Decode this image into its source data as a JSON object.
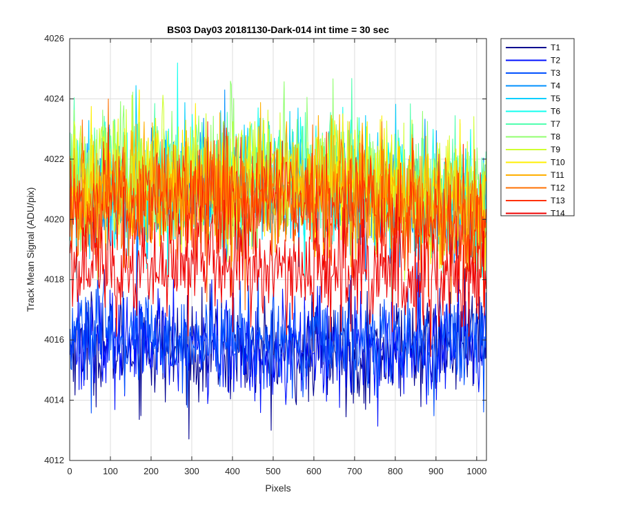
{
  "chart_data": {
    "type": "line",
    "title": "BS03 Day03 20181130-Dark-014 int time = 30 sec",
    "xlabel": "Pixels",
    "ylabel": "Track Mean Signal (ADU/pix)",
    "xlim": [
      0,
      1024
    ],
    "ylim": [
      4012,
      4026
    ],
    "xticks": [
      0,
      100,
      200,
      300,
      400,
      500,
      600,
      700,
      800,
      900,
      1000
    ],
    "yticks": [
      4012,
      4014,
      4016,
      4018,
      4020,
      4022,
      4024,
      4026
    ],
    "grid": true,
    "legend_position": "outside-right",
    "series": [
      {
        "name": "T1",
        "color": "#00008f",
        "level": [
          4016.0,
          4015.6,
          4015.9
        ],
        "noise": 0.85
      },
      {
        "name": "T2",
        "color": "#0010ff",
        "level": [
          4016.1,
          4015.7,
          4016.0
        ],
        "noise": 0.85
      },
      {
        "name": "T3",
        "color": "#0050ff",
        "level": [
          4016.3,
          4015.9,
          4016.2
        ],
        "noise": 0.85
      },
      {
        "name": "T4",
        "color": "#0090ff",
        "level": [
          4020.6,
          4020.9,
          4020.0
        ],
        "noise": 1.0
      },
      {
        "name": "T5",
        "color": "#00cfff",
        "level": [
          4020.8,
          4021.1,
          4020.2
        ],
        "noise": 1.0
      },
      {
        "name": "T6",
        "color": "#10ffef",
        "level": [
          4021.0,
          4021.3,
          4020.4
        ],
        "noise": 1.0
      },
      {
        "name": "T7",
        "color": "#50ffaf",
        "level": [
          4021.2,
          4021.5,
          4020.6
        ],
        "noise": 1.0
      },
      {
        "name": "T8",
        "color": "#90ff6f",
        "level": [
          4021.3,
          4021.6,
          4020.7
        ],
        "noise": 1.0
      },
      {
        "name": "T9",
        "color": "#cfff30",
        "level": [
          4021.2,
          4021.4,
          4020.6
        ],
        "noise": 1.0
      },
      {
        "name": "T10",
        "color": "#ffef00",
        "level": [
          4021.0,
          4021.2,
          4020.4
        ],
        "noise": 1.0
      },
      {
        "name": "T11",
        "color": "#ffaf00",
        "level": [
          4020.8,
          4021.0,
          4020.2
        ],
        "noise": 1.0
      },
      {
        "name": "T12",
        "color": "#ff7000",
        "level": [
          4020.5,
          4020.8,
          4019.9
        ],
        "noise": 1.0
      },
      {
        "name": "T13",
        "color": "#ff3000",
        "level": [
          4020.3,
          4020.6,
          4019.7
        ],
        "noise": 1.0
      },
      {
        "name": "T14",
        "color": "#ef0000",
        "level": [
          4018.2,
          4018.4,
          4017.8
        ],
        "noise": 0.9
      }
    ]
  }
}
